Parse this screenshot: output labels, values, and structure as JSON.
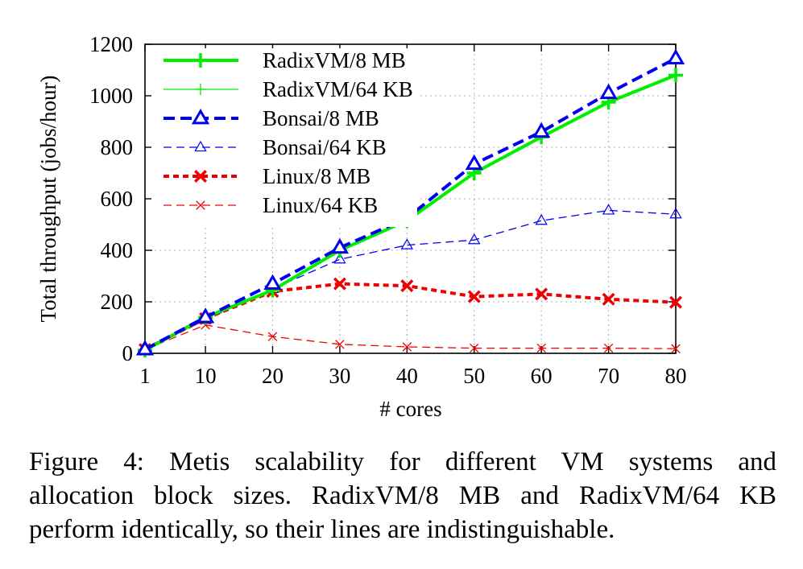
{
  "chart_data": {
    "type": "line",
    "xlabel": "# cores",
    "ylabel": "Total throughput (jobs/hour)",
    "x": [
      1,
      10,
      20,
      30,
      40,
      50,
      60,
      70,
      80
    ],
    "x_ticks": [
      "1",
      "10",
      "20",
      "30",
      "40",
      "50",
      "60",
      "70",
      "80"
    ],
    "xlim": [
      1,
      80
    ],
    "ylim": [
      0,
      1200
    ],
    "y_ticks": [
      "0",
      "200",
      "400",
      "600",
      "800",
      "1000",
      "1200"
    ],
    "grid": true,
    "legend_position": "top-left",
    "series": [
      {
        "name": "RadixVM/8 MB",
        "values": [
          12,
          140,
          245,
          400,
          515,
          700,
          840,
          975,
          1080
        ],
        "color": "#00ee00",
        "dash": "solid",
        "weight": "thick",
        "marker": "plus"
      },
      {
        "name": "RadixVM/64 KB",
        "values": [
          12,
          140,
          245,
          400,
          515,
          700,
          840,
          975,
          1080
        ],
        "color": "#00ee00",
        "dash": "solid",
        "weight": "thin",
        "marker": "plus"
      },
      {
        "name": "Bonsai/8 MB",
        "values": [
          15,
          140,
          270,
          410,
          525,
          735,
          860,
          1010,
          1145
        ],
        "color": "#0000ee",
        "dash": "dashed",
        "weight": "thick",
        "marker": "triangle-filled"
      },
      {
        "name": "Bonsai/64 KB",
        "values": [
          15,
          130,
          250,
          365,
          420,
          440,
          515,
          555,
          540
        ],
        "color": "#0000ee",
        "dash": "dashed",
        "weight": "thin",
        "marker": "triangle-open"
      },
      {
        "name": "Linux/8 MB",
        "values": [
          15,
          135,
          240,
          270,
          262,
          220,
          230,
          210,
          198
        ],
        "color": "#ee0000",
        "dash": "dotted",
        "weight": "thick",
        "marker": "x"
      },
      {
        "name": "Linux/64 KB",
        "values": [
          15,
          110,
          65,
          35,
          25,
          20,
          20,
          20,
          18
        ],
        "color": "#ee0000",
        "dash": "dashed",
        "weight": "thin",
        "marker": "x"
      }
    ]
  },
  "caption": {
    "lines": [
      "Figure 4: Metis scalability for different VM systems and",
      "allocation block sizes. RadixVM/8 MB and RadixVM/64 KB",
      "perform identically, so their lines are indistinguishable."
    ]
  }
}
